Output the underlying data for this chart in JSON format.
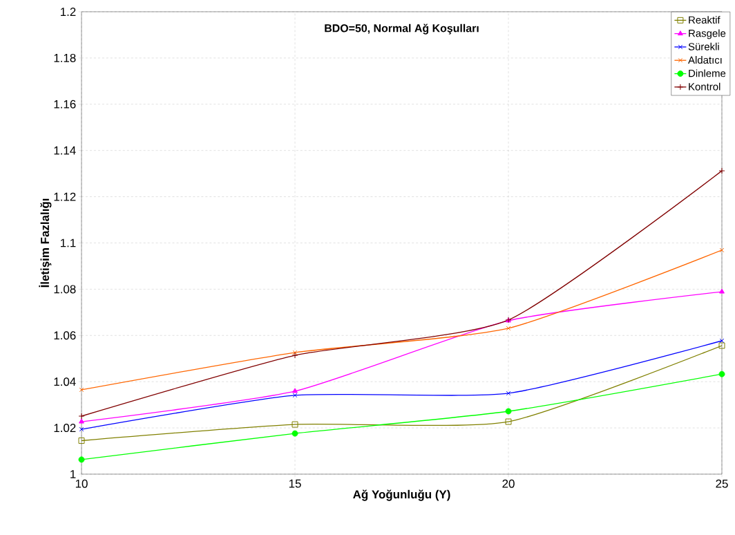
{
  "chart_data": {
    "type": "line",
    "title": "BDO=50, Normal Ağ Koşulları",
    "xlabel": "Ağ Yoğunluğu (Y)",
    "ylabel": "İletişim Fazlalığı",
    "x": [
      10,
      15,
      20,
      25
    ],
    "xlim": [
      10,
      25
    ],
    "xticks": [
      10,
      15,
      20,
      25
    ],
    "ylim": [
      1,
      1.2
    ],
    "yticks": [
      1,
      1.02,
      1.04,
      1.06,
      1.08,
      1.1,
      1.12,
      1.14,
      1.16,
      1.18,
      1.2
    ],
    "grid": true,
    "legend": "top right",
    "series": [
      {
        "name": "Reaktif",
        "color": "#808000",
        "marker": "square",
        "values": [
          1.0145,
          1.0215,
          1.0227,
          1.0556
        ]
      },
      {
        "name": "Rasgele",
        "color": "#ff00ff",
        "marker": "triangle",
        "values": [
          1.0227,
          1.0359,
          1.0664,
          1.0789
        ]
      },
      {
        "name": "Sürekli",
        "color": "#0000ff",
        "marker": "cross",
        "values": [
          1.0194,
          1.0341,
          1.035,
          1.0577
        ]
      },
      {
        "name": "Aldatıcı",
        "color": "#ff6600",
        "marker": "cross",
        "values": [
          1.0365,
          1.0526,
          1.0631,
          1.0969
        ]
      },
      {
        "name": "Dinleme",
        "color": "#00ff00",
        "marker": "circle",
        "values": [
          1.0063,
          1.0176,
          1.0272,
          1.0433
        ]
      },
      {
        "name": "Kontrol",
        "color": "#800000",
        "marker": "plus",
        "values": [
          1.0251,
          1.0514,
          1.0667,
          1.1312
        ]
      }
    ]
  }
}
